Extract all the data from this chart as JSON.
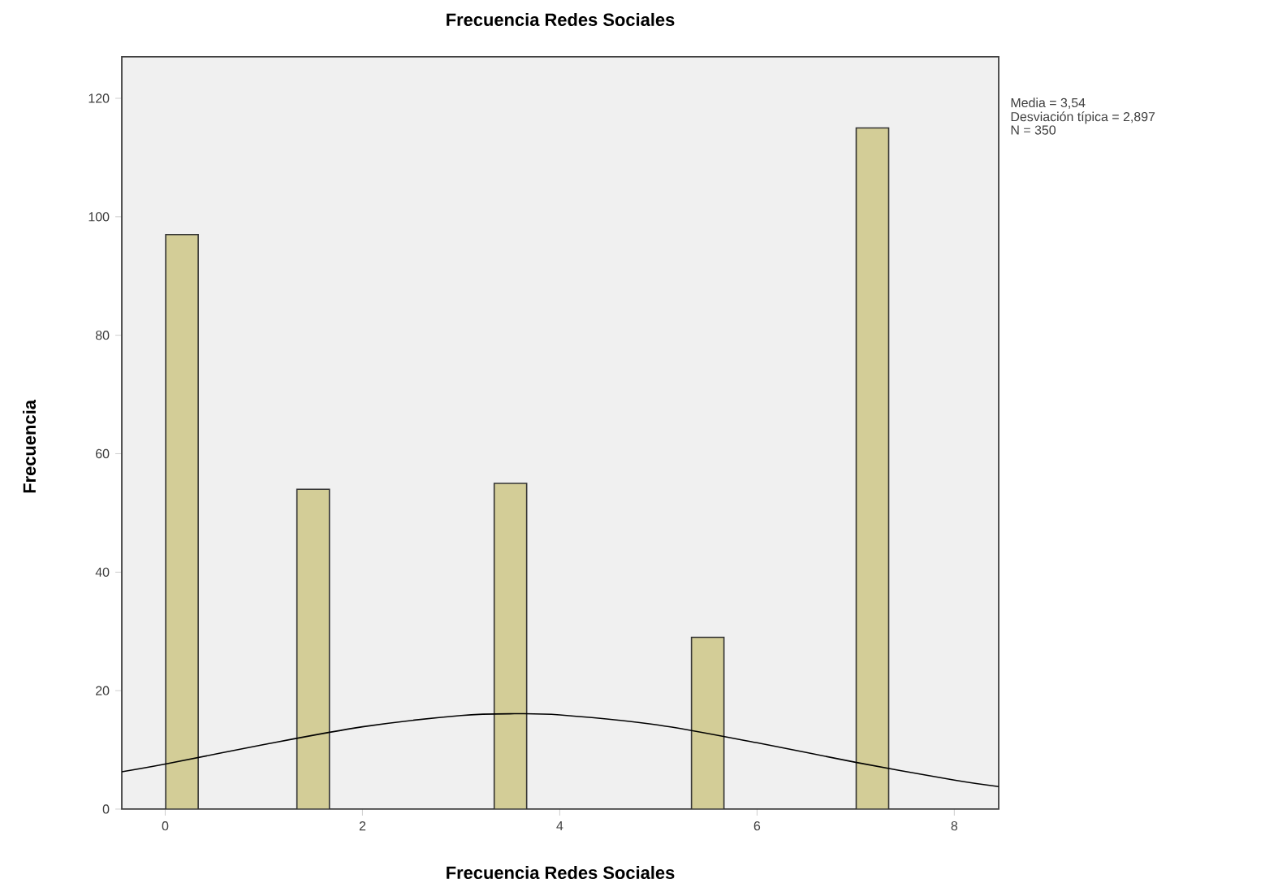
{
  "chart_data": {
    "type": "bar",
    "title": "Frecuencia Redes Sociales",
    "xlabel": "Frecuencia Redes Sociales",
    "ylabel": "Frecuencia",
    "series": [
      {
        "color": "#d3cd97",
        "x": [
          0.17,
          1.5,
          3.5,
          5.5,
          7.17
        ],
        "values": [
          97,
          54,
          55,
          29,
          115
        ]
      },
      {
        "type": "line",
        "color": "#000000",
        "x": [
          -0.44,
          0,
          1,
          2,
          3,
          3.54,
          4,
          5,
          6,
          7,
          8,
          8.45
        ],
        "values": [
          6.3,
          7.6,
          10.9,
          13.9,
          15.8,
          16.1,
          15.9,
          14.2,
          11.2,
          7.9,
          4.9,
          3.8
        ]
      }
    ],
    "xlim": [
      -0.44,
      8.45
    ],
    "ylim": [
      0,
      127
    ],
    "xticks": [
      0,
      2,
      4,
      6,
      8
    ],
    "yticks": [
      0,
      20,
      40,
      60,
      80,
      100,
      120
    ],
    "annotations": [
      "Media = 3,54",
      "Desviación típica = 2,897",
      "N = 350"
    ]
  }
}
